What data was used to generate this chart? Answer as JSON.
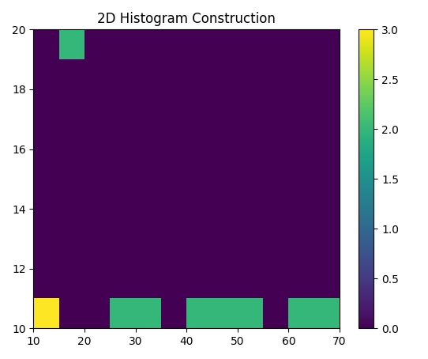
{
  "title": "2D Histogram Construction",
  "xlim": [
    10,
    70
  ],
  "ylim": [
    10,
    20
  ],
  "xticks": [
    10,
    20,
    30,
    40,
    50,
    60,
    70
  ],
  "yticks": [
    10,
    12,
    14,
    16,
    18,
    20
  ],
  "colormap": "viridis",
  "vmin": 0,
  "vmax": 3,
  "figsize": [
    5.42,
    4.54
  ],
  "dpi": 100,
  "xbins": [
    10,
    15,
    20,
    25,
    30,
    35,
    40,
    45,
    50,
    55,
    60,
    65,
    70
  ],
  "ybins": [
    10,
    11,
    12,
    13,
    14,
    15,
    16,
    17,
    18,
    19,
    20
  ],
  "cells": [
    {
      "row": 0,
      "col": 0,
      "val": 3
    },
    {
      "row": 9,
      "col": 1,
      "val": 2
    },
    {
      "row": 0,
      "col": 3,
      "val": 2
    },
    {
      "row": 0,
      "col": 4,
      "val": 2
    },
    {
      "row": 0,
      "col": 6,
      "val": 2
    },
    {
      "row": 0,
      "col": 7,
      "val": 2
    },
    {
      "row": 0,
      "col": 8,
      "val": 2
    },
    {
      "row": 0,
      "col": 10,
      "val": 2
    },
    {
      "row": 0,
      "col": 11,
      "val": 2
    }
  ]
}
